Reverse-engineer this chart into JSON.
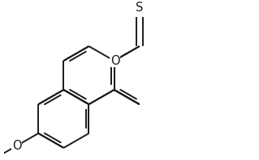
{
  "bg_color": "#ffffff",
  "line_color": "#1a1a1a",
  "line_width": 1.4,
  "font_size": 10.5,
  "S_label": "S",
  "O_label": "O",
  "OMe_label": "O"
}
